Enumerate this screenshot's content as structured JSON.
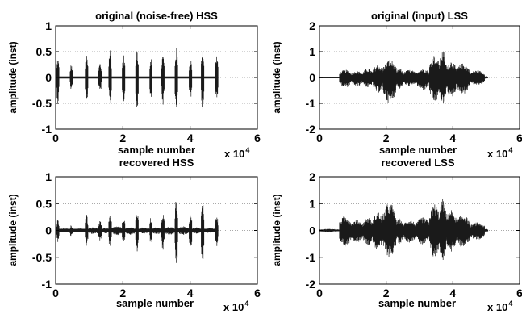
{
  "chart_data": [
    {
      "type": "line",
      "title": "original (noise-free) HSS",
      "xlabel": "sample number",
      "x_exponent": "x 10",
      "x_exponent_power": "4",
      "ylabel": "amplitude (inst)",
      "xlim": [
        0,
        60000
      ],
      "ylim": [
        -1,
        1
      ],
      "xticks": [
        0,
        20000,
        40000,
        60000
      ],
      "xticklabels": [
        "0",
        "2",
        "4",
        "6"
      ],
      "yticks": [
        -1,
        -0.5,
        0,
        0.5,
        1
      ],
      "yticklabels": [
        "-1",
        "-0.5",
        "0",
        "0.5",
        "1"
      ],
      "grid": true,
      "color": "#1a1a1a",
      "baseline": 0.02,
      "segments": [
        {
          "x": [
            300,
            1000
          ],
          "max": 0.4,
          "min": -0.52
        },
        {
          "x": [
            4300,
            5000
          ],
          "max": 0.26,
          "min": -0.25
        },
        {
          "x": [
            8800,
            9600
          ],
          "max": 0.43,
          "min": -0.54
        },
        {
          "x": [
            12800,
            13600
          ],
          "max": 0.3,
          "min": -0.3
        },
        {
          "x": [
            15800,
            16600
          ],
          "max": 0.58,
          "min": -0.58
        },
        {
          "x": [
            19800,
            20600
          ],
          "max": 0.45,
          "min": -0.56
        },
        {
          "x": [
            23800,
            24600
          ],
          "max": 0.6,
          "min": -0.62
        },
        {
          "x": [
            28000,
            28700
          ],
          "max": 0.43,
          "min": -0.43
        },
        {
          "x": [
            31500,
            32300
          ],
          "max": 0.47,
          "min": -0.55
        },
        {
          "x": [
            35500,
            36300
          ],
          "max": 0.58,
          "min": -0.67
        },
        {
          "x": [
            39700,
            40500
          ],
          "max": 0.4,
          "min": -0.47
        },
        {
          "x": [
            43300,
            44100
          ],
          "max": 0.6,
          "min": -0.63
        },
        {
          "x": [
            47500,
            48300
          ],
          "max": 0.46,
          "min": -0.5
        }
      ]
    },
    {
      "type": "line",
      "title": "original (input) LSS",
      "xlabel": "sample number",
      "x_exponent": "x 10",
      "x_exponent_power": "4",
      "ylabel": "amplitude (inst)",
      "xlim": [
        0,
        60000
      ],
      "ylim": [
        -2,
        2
      ],
      "xticks": [
        0,
        20000,
        40000,
        60000
      ],
      "xticklabels": [
        "0",
        "2",
        "4",
        "6"
      ],
      "yticks": [
        -2,
        -1,
        0,
        1,
        2
      ],
      "yticklabels": [
        "-2",
        "-1",
        "0",
        "1",
        "2"
      ],
      "grid": true,
      "color": "#1a1a1a",
      "baseline": 0.03,
      "segments": [
        {
          "x": [
            0,
            6000
          ],
          "max": 0.03,
          "min": -0.03
        },
        {
          "x": [
            6000,
            9500
          ],
          "max": 0.3,
          "min": -0.4
        },
        {
          "x": [
            9500,
            13000
          ],
          "max": 0.25,
          "min": -0.35
        },
        {
          "x": [
            13000,
            16000
          ],
          "max": 0.35,
          "min": -0.4
        },
        {
          "x": [
            16000,
            19000
          ],
          "max": 0.5,
          "min": -0.6
        },
        {
          "x": [
            19000,
            23000
          ],
          "max": 0.7,
          "min": -1.0
        },
        {
          "x": [
            23000,
            25000
          ],
          "max": 0.35,
          "min": -0.45
        },
        {
          "x": [
            25000,
            29000
          ],
          "max": 0.3,
          "min": -0.35
        },
        {
          "x": [
            29000,
            33000
          ],
          "max": 0.35,
          "min": -0.5
        },
        {
          "x": [
            33000,
            36000
          ],
          "max": 0.9,
          "min": -1.0
        },
        {
          "x": [
            36000,
            38000
          ],
          "max": 1.05,
          "min": -1.1
        },
        {
          "x": [
            38000,
            41000
          ],
          "max": 0.65,
          "min": -0.8
        },
        {
          "x": [
            41000,
            45000
          ],
          "max": 0.55,
          "min": -0.65
        },
        {
          "x": [
            45000,
            49500
          ],
          "max": 0.28,
          "min": -0.3
        },
        {
          "x": [
            49500,
            50500
          ],
          "max": 0.05,
          "min": -0.05
        }
      ]
    },
    {
      "type": "line",
      "title": "recovered HSS",
      "xlabel": "sample number",
      "x_exponent": "x 10",
      "x_exponent_power": "4",
      "ylabel": "amplitude (inst)",
      "xlim": [
        0,
        60000
      ],
      "ylim": [
        -1,
        1
      ],
      "xticks": [
        0,
        20000,
        40000,
        60000
      ],
      "xticklabels": [
        "0",
        "2",
        "4",
        "6"
      ],
      "yticks": [
        -1,
        -0.5,
        0,
        0.5,
        1
      ],
      "yticklabels": [
        "-1",
        "-0.5",
        "0",
        "0.5",
        "1"
      ],
      "grid": true,
      "color": "#1a1a1a",
      "baseline": 0.03,
      "segments": [
        {
          "x": [
            300,
            1000
          ],
          "max": 0.2,
          "min": -0.22
        },
        {
          "x": [
            1000,
            4300
          ],
          "max": 0.04,
          "min": -0.04
        },
        {
          "x": [
            4300,
            5000
          ],
          "max": 0.1,
          "min": -0.12
        },
        {
          "x": [
            5000,
            8800
          ],
          "max": 0.04,
          "min": -0.04
        },
        {
          "x": [
            8800,
            9600
          ],
          "max": 0.31,
          "min": -0.32
        },
        {
          "x": [
            9600,
            12800
          ],
          "max": 0.06,
          "min": -0.07
        },
        {
          "x": [
            12800,
            13600
          ],
          "max": 0.18,
          "min": -0.2
        },
        {
          "x": [
            13600,
            15800
          ],
          "max": 0.05,
          "min": -0.06
        },
        {
          "x": [
            15800,
            16600
          ],
          "max": 0.3,
          "min": -0.35
        },
        {
          "x": [
            16600,
            19800
          ],
          "max": 0.08,
          "min": -0.09
        },
        {
          "x": [
            19800,
            20600
          ],
          "max": 0.27,
          "min": -0.25
        },
        {
          "x": [
            20600,
            23800
          ],
          "max": 0.06,
          "min": -0.08
        },
        {
          "x": [
            23800,
            24600
          ],
          "max": 0.38,
          "min": -0.44
        },
        {
          "x": [
            24600,
            28000
          ],
          "max": 0.06,
          "min": -0.06
        },
        {
          "x": [
            28000,
            28700
          ],
          "max": 0.25,
          "min": -0.28
        },
        {
          "x": [
            28700,
            31500
          ],
          "max": 0.06,
          "min": -0.07
        },
        {
          "x": [
            31500,
            32300
          ],
          "max": 0.35,
          "min": -0.4
        },
        {
          "x": [
            32300,
            35500
          ],
          "max": 0.07,
          "min": -0.08
        },
        {
          "x": [
            35500,
            36300
          ],
          "max": 0.6,
          "min": -0.7
        },
        {
          "x": [
            36300,
            39700
          ],
          "max": 0.08,
          "min": -0.08
        },
        {
          "x": [
            39700,
            40500
          ],
          "max": 0.35,
          "min": -0.4
        },
        {
          "x": [
            40500,
            43300
          ],
          "max": 0.06,
          "min": -0.06
        },
        {
          "x": [
            43300,
            44100
          ],
          "max": 0.55,
          "min": -0.65
        },
        {
          "x": [
            44100,
            47500
          ],
          "max": 0.05,
          "min": -0.05
        },
        {
          "x": [
            47500,
            48300
          ],
          "max": 0.3,
          "min": -0.3
        }
      ]
    },
    {
      "type": "line",
      "title": "recovered LSS",
      "xlabel": "sample number",
      "x_exponent": "x 10",
      "x_exponent_power": "4",
      "ylabel": "amplitude (inst)",
      "xlim": [
        0,
        60000
      ],
      "ylim": [
        -2,
        2
      ],
      "xticks": [
        0,
        20000,
        40000,
        60000
      ],
      "xticklabels": [
        "0",
        "2",
        "4",
        "6"
      ],
      "yticks": [
        -2,
        -1,
        0,
        1,
        2
      ],
      "yticklabels": [
        "-2",
        "-1",
        "0",
        "1",
        "2"
      ],
      "grid": true,
      "color": "#1a1a1a",
      "baseline": 0.03,
      "segments": [
        {
          "x": [
            0,
            6000
          ],
          "max": 0.06,
          "min": -0.06
        },
        {
          "x": [
            6000,
            9500
          ],
          "max": 0.55,
          "min": -0.6
        },
        {
          "x": [
            9500,
            13000
          ],
          "max": 0.4,
          "min": -0.45
        },
        {
          "x": [
            13000,
            16000
          ],
          "max": 0.5,
          "min": -0.55
        },
        {
          "x": [
            16000,
            19000
          ],
          "max": 0.7,
          "min": -0.75
        },
        {
          "x": [
            19000,
            23000
          ],
          "max": 1.05,
          "min": -1.0
        },
        {
          "x": [
            23000,
            25000
          ],
          "max": 0.45,
          "min": -0.5
        },
        {
          "x": [
            25000,
            29000
          ],
          "max": 0.4,
          "min": -0.45
        },
        {
          "x": [
            29000,
            33000
          ],
          "max": 0.5,
          "min": -0.55
        },
        {
          "x": [
            33000,
            36000
          ],
          "max": 1.0,
          "min": -1.05
        },
        {
          "x": [
            36000,
            38000
          ],
          "max": 1.2,
          "min": -1.15
        },
        {
          "x": [
            38000,
            41000
          ],
          "max": 0.8,
          "min": -0.8
        },
        {
          "x": [
            41000,
            45000
          ],
          "max": 0.6,
          "min": -0.65
        },
        {
          "x": [
            45000,
            49500
          ],
          "max": 0.3,
          "min": -0.35
        },
        {
          "x": [
            49500,
            50500
          ],
          "max": 0.06,
          "min": -0.06
        }
      ]
    }
  ]
}
